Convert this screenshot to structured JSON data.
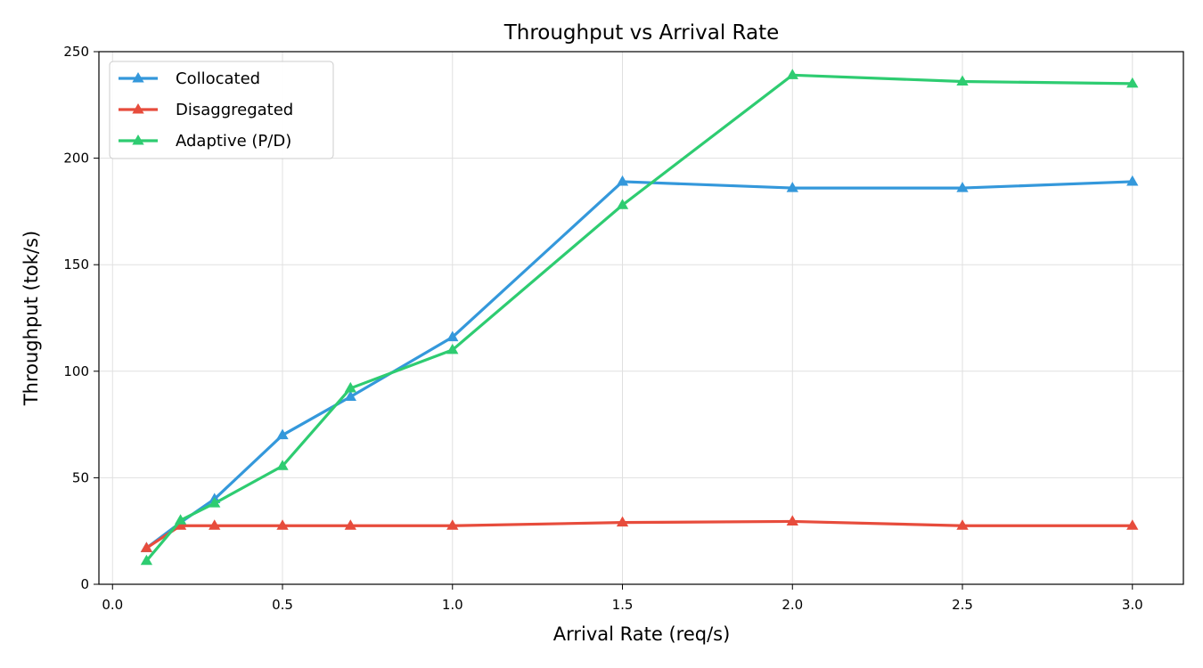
{
  "chart_data": {
    "type": "line",
    "title": "Throughput vs Arrival Rate",
    "xlabel": "Arrival Rate (req/s)",
    "ylabel": "Throughput (tok/s)",
    "xlim": [
      -0.04,
      3.15
    ],
    "ylim": [
      0,
      250
    ],
    "xticks": [
      0.0,
      0.5,
      1.0,
      1.5,
      2.0,
      2.5,
      3.0
    ],
    "xtick_labels": [
      "0.0",
      "0.5",
      "1.0",
      "1.5",
      "2.0",
      "2.5",
      "3.0"
    ],
    "yticks": [
      0,
      50,
      100,
      150,
      200,
      250
    ],
    "ytick_labels": [
      "0",
      "50",
      "100",
      "150",
      "200",
      "250"
    ],
    "grid": true,
    "legend_position": "top-left",
    "marker": "triangle",
    "x": [
      0.1,
      0.2,
      0.3,
      0.5,
      0.7,
      1.0,
      1.5,
      2.0,
      2.5,
      3.0
    ],
    "series": [
      {
        "name": "Collocated",
        "color": "#3498db",
        "values": [
          17,
          29,
          40,
          70,
          88,
          116,
          189,
          186,
          186,
          189
        ]
      },
      {
        "name": "Disaggregated",
        "color": "#e74c3c",
        "values": [
          17,
          27.5,
          27.5,
          27.5,
          27.5,
          27.5,
          29,
          29.5,
          27.5,
          27.5
        ]
      },
      {
        "name": "Adaptive (P/D)",
        "color": "#2ecc71",
        "values": [
          11,
          30,
          38,
          55.5,
          92,
          110,
          178,
          239,
          236,
          235
        ]
      }
    ]
  }
}
